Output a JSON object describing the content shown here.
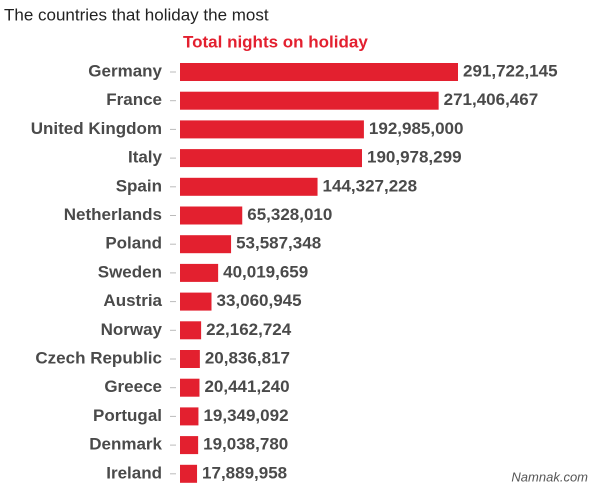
{
  "chart_data": {
    "type": "bar",
    "orientation": "horizontal",
    "title": "The countries that holiday the most",
    "subtitle": "Total nights on holiday",
    "categories": [
      "Germany",
      "France",
      "United Kingdom",
      "Italy",
      "Spain",
      "Netherlands",
      "Poland",
      "Sweden",
      "Austria",
      "Norway",
      "Czech Republic",
      "Greece",
      "Portugal",
      "Denmark",
      "Ireland"
    ],
    "values": [
      291722145,
      271406467,
      192985000,
      190978299,
      144327228,
      65328010,
      53587348,
      40019659,
      33060945,
      22162724,
      20836817,
      20441240,
      19349092,
      19038780,
      17889958
    ],
    "value_labels": [
      "291,722,145",
      "271,406,467",
      "192,985,000",
      "190,978,299",
      "144,327,228",
      "65,328,010",
      "53,587,348",
      "40,019,659",
      "33,060,945",
      "22,162,724",
      "20,836,817",
      "20,441,240",
      "19,349,092",
      "19,038,780",
      "17,889,958"
    ],
    "color": "#e3202f",
    "watermark": "Namnak.com"
  }
}
